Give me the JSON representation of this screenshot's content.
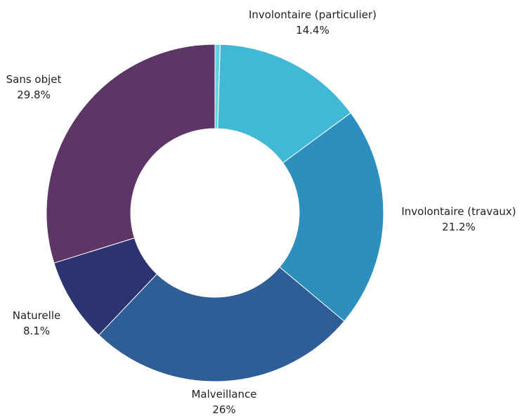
{
  "chart_data": {
    "type": "pie",
    "variant": "donut",
    "title": "",
    "slices": [
      {
        "label": "Involontaire (particulier)",
        "value_label": "14.4%",
        "value": 14.4,
        "color": "#41b8d6"
      },
      {
        "label": "Involontaire (travaux)",
        "value_label": "21.2%",
        "value": 21.2,
        "color": "#2d8fbd"
      },
      {
        "label": "Malveillance",
        "value_label": "26%",
        "value": 26,
        "color": "#2f5d96"
      },
      {
        "label": "Naturelle",
        "value_label": "8.1%",
        "value": 8.1,
        "color": "#2d3270"
      },
      {
        "label": "Sans objet",
        "value_label": "29.8%",
        "value": 29.8,
        "color": "#5d3566"
      }
    ],
    "other_slice": {
      "value": 0.5,
      "color": "#5fd3e4"
    },
    "legend": "none"
  }
}
